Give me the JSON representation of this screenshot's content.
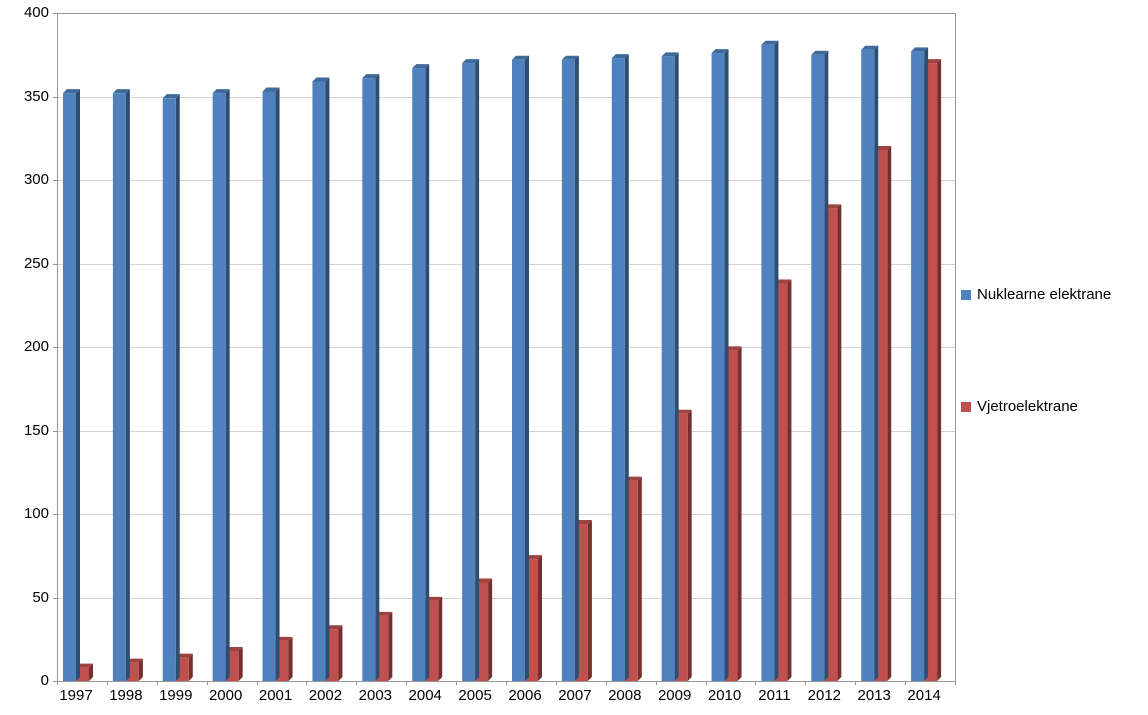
{
  "chart_data": {
    "type": "bar",
    "style": "3d-column",
    "title": "",
    "categories": [
      "1997",
      "1998",
      "1999",
      "2000",
      "2001",
      "2002",
      "2003",
      "2004",
      "2005",
      "2006",
      "2007",
      "2008",
      "2009",
      "2010",
      "2011",
      "2012",
      "2013",
      "2014"
    ],
    "series": [
      {
        "name": "Nuklearne elektrane",
        "color": "#4E81BD",
        "values": [
          352,
          352,
          349,
          352,
          353,
          359,
          361,
          367,
          370,
          372,
          372,
          373,
          374,
          376,
          381,
          375,
          378,
          377
        ]
      },
      {
        "name": "Vjetroelektrane",
        "color": "#C0504D",
        "values": [
          8,
          11,
          14,
          18,
          24,
          31,
          39,
          48,
          59,
          73,
          94,
          120,
          160,
          198,
          238,
          283,
          318,
          370
        ]
      }
    ],
    "xlabel": "",
    "ylabel": "",
    "ylim": [
      0,
      400
    ],
    "ytick_step": 50,
    "yticks": [
      "0",
      "50",
      "100",
      "150",
      "200",
      "250",
      "300",
      "350",
      "400"
    ],
    "grid": true,
    "legend_position": "right",
    "background": "#FFFFFF",
    "gridline_color": "#D3D3D3",
    "axis_color": "#969696"
  }
}
